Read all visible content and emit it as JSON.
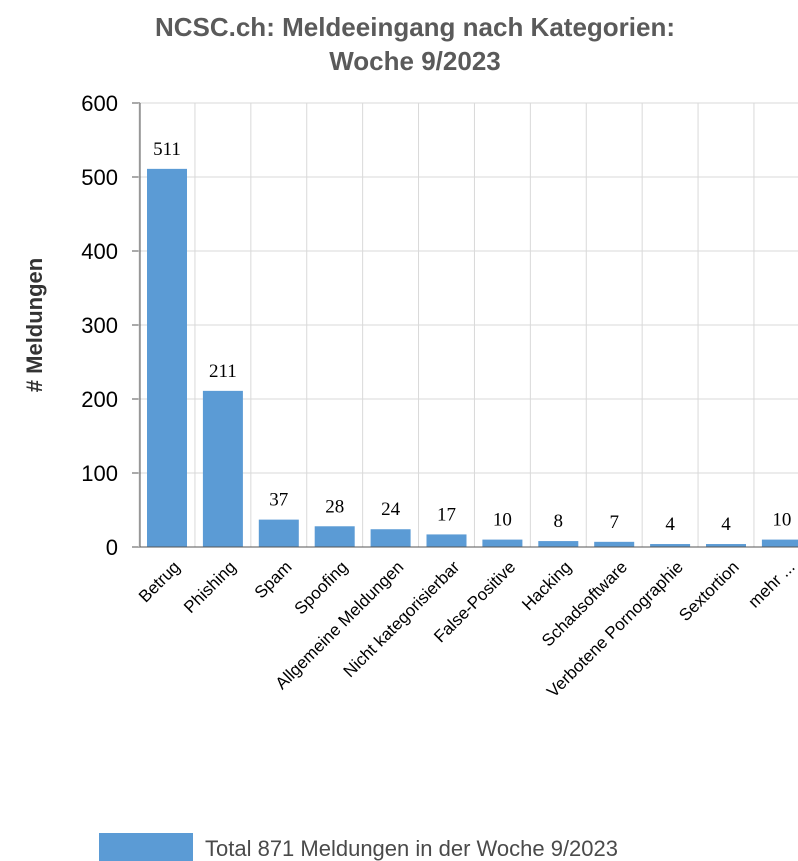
{
  "chart_data": {
    "type": "bar",
    "title_line1": "NCSC.ch: Meldeeingang nach Kategorien:",
    "title_line2": "Woche 9/2023",
    "ylabel": "# Meldungen",
    "xlabel": "",
    "ylim": [
      0,
      600
    ],
    "yticks": [
      0,
      100,
      200,
      300,
      400,
      500,
      600
    ],
    "grid": true,
    "categories": [
      "Betrug",
      "Phishing",
      "Spam",
      "Spoofing",
      "Allgemeine Meldungen",
      "Nicht kategorisierbar",
      "False-Positive",
      "Hacking",
      "Schadsoftware",
      "Verbotene Pornographie",
      "Sextortion",
      "mehr ..."
    ],
    "values": [
      511,
      211,
      37,
      28,
      24,
      17,
      10,
      8,
      7,
      4,
      4,
      10
    ],
    "bar_color": "#5b9bd5",
    "legend": {
      "label": "Total 871 Meldungen in der Woche 9/2023",
      "placement": "bottom"
    }
  }
}
